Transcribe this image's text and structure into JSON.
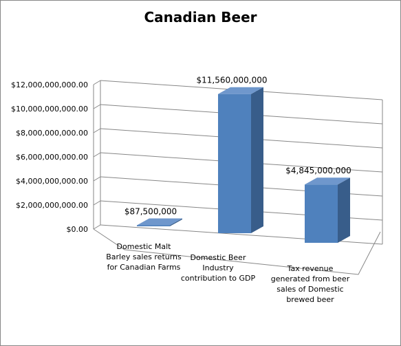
{
  "chart_data": {
    "type": "bar",
    "title": "Canadian Beer",
    "xlabel": "",
    "ylabel": "",
    "categories": [
      "Domestic Malt Barley sales returns for Canadian Farms",
      "Domestic Beer Industry contribution to GDP",
      "Tax revenue generated from beer sales of Domestic brewed beer"
    ],
    "category_lines": [
      [
        "Domestic Malt",
        "Barley sales returns",
        "for Canadian Farms"
      ],
      [
        "Domestic Beer",
        "Industry",
        "contribution to GDP"
      ],
      [
        "Tax revenue",
        "generated from beer",
        "sales of Domestic",
        "brewed beer"
      ]
    ],
    "values": [
      87500000,
      11560000000,
      4845000000
    ],
    "data_labels": [
      "$87,500,000",
      "$11,560,000,000",
      "$4,845,000,000"
    ],
    "yticks": [
      0,
      2000000000,
      4000000000,
      6000000000,
      8000000000,
      10000000000,
      12000000000
    ],
    "ytick_labels": [
      "$0.00",
      "$2,000,000,000.00",
      "$4,000,000,000.00",
      "$6,000,000,000.00",
      "$8,000,000,000.00",
      "$10,000,000,000.00",
      "$12,000,000,000.00"
    ],
    "ylim": [
      0,
      12000000000
    ],
    "grid": true,
    "legend": "none",
    "style": "3d-column",
    "colors": {
      "bar_front": "#4f81bd",
      "bar_side": "#385d8a",
      "bar_top": "#6f97cc",
      "grid": "#868686"
    }
  }
}
